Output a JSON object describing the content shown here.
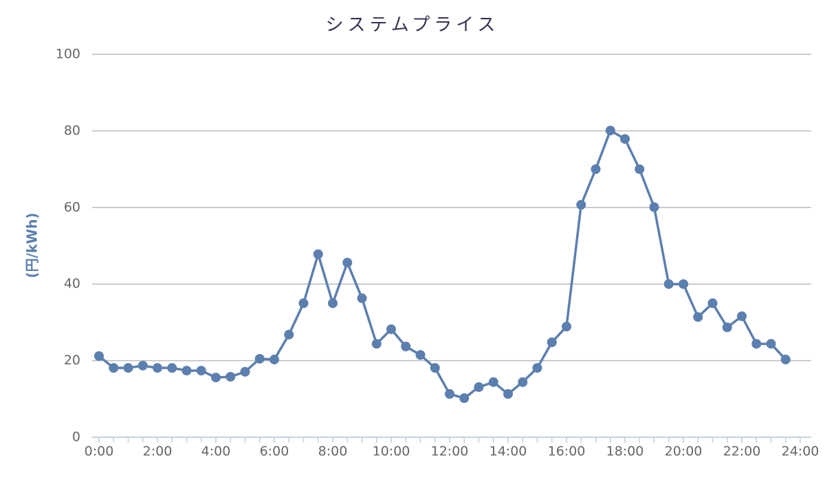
{
  "chart_data": {
    "type": "line",
    "title": "システムプライス",
    "y_label": "(円/kWh)",
    "x": [
      0,
      0.5,
      1,
      1.5,
      2,
      2.5,
      3,
      3.5,
      4,
      4.5,
      5,
      5.5,
      6,
      6.5,
      7,
      7.5,
      8,
      8.5,
      9,
      9.5,
      10,
      10.5,
      11,
      11.5,
      12,
      12.5,
      13,
      13.5,
      14,
      14.5,
      15,
      15.5,
      16,
      16.5,
      17,
      17.5,
      18,
      18.5,
      19,
      19.5,
      20,
      20.5,
      21,
      21.5,
      22,
      22.5,
      23,
      23.5
    ],
    "series": [
      {
        "color": "#5b7fae",
        "values": [
          21.2,
          18.1,
          18.1,
          18.7,
          18.1,
          18.1,
          17.4,
          17.4,
          15.6,
          15.8,
          17.1,
          20.5,
          20.3,
          26.8,
          35.0,
          47.8,
          35.0,
          45.6,
          36.3,
          24.4,
          28.2,
          23.7,
          21.5,
          18.1,
          11.3,
          10.2,
          13.1,
          14.4,
          11.3,
          14.4,
          18.1,
          24.8,
          28.9,
          60.7,
          70.0,
          80.1,
          77.9,
          70.0,
          60.1,
          40.0,
          40.0,
          31.4,
          35.0,
          28.7,
          31.6,
          24.4,
          24.4,
          20.3
        ]
      }
    ],
    "xlim": [
      0,
      24
    ],
    "xticks": [
      {
        "value": 0,
        "label": "0:00"
      },
      {
        "value": 2,
        "label": "2:00"
      },
      {
        "value": 4,
        "label": "4:00"
      },
      {
        "value": 6,
        "label": "6:00"
      },
      {
        "value": 8,
        "label": "8:00"
      },
      {
        "value": 10,
        "label": "10:00"
      },
      {
        "value": 12,
        "label": "12:00"
      },
      {
        "value": 14,
        "label": "14:00"
      },
      {
        "value": 16,
        "label": "16:00"
      },
      {
        "value": 18,
        "label": "18:00"
      },
      {
        "value": 20,
        "label": "20:00"
      },
      {
        "value": 22,
        "label": "22:00"
      },
      {
        "value": 24,
        "label": "24:00"
      }
    ],
    "ylim": [
      0,
      100
    ],
    "yticks": [
      0,
      20,
      40,
      60,
      80,
      100
    ],
    "grid": true
  }
}
